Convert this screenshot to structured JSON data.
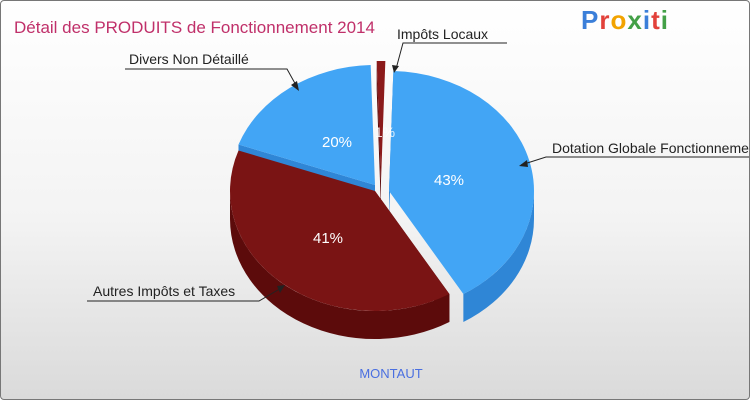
{
  "chart_data": {
    "type": "pie",
    "title": "Détail des PRODUITS de Fonctionnement 2014",
    "subtitle": "MONTAUT",
    "slices": [
      {
        "label": "Dotation Globale Fonctionnement",
        "value": 43,
        "display": "43%",
        "color": "#42a5f5",
        "dark": "#2f86d6"
      },
      {
        "label": "Autres Impôts et Taxes",
        "value": 41,
        "display": "41%",
        "color": "#7a1414",
        "dark": "#5c0b0b"
      },
      {
        "label": "Divers Non Détaillé",
        "value": 20,
        "display": "20%",
        "color": "#42a5f5",
        "dark": "#2f86d6"
      },
      {
        "label": "Impôts Locaux",
        "value": 1,
        "display": "1%",
        "color": "#8b1a1a",
        "dark": "#5c0b0b"
      }
    ],
    "callouts": {
      "dotation": "Dotation Globale Fonctionnement",
      "autres": "Autres Impôts et Taxes",
      "divers": "Divers Non Détaillé",
      "impots": "Impôts Locaux"
    }
  },
  "logo": {
    "text": "Proxiti"
  },
  "colors": {
    "title": "#c0306a",
    "subtitle": "#4a6fe0",
    "callout_text": "#222222"
  }
}
